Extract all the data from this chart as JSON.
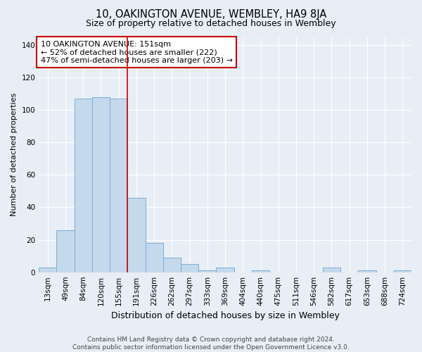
{
  "title": "10, OAKINGTON AVENUE, WEMBLEY, HA9 8JA",
  "subtitle": "Size of property relative to detached houses in Wembley",
  "xlabel": "Distribution of detached houses by size in Wembley",
  "ylabel": "Number of detached properties",
  "footer_line1": "Contains HM Land Registry data © Crown copyright and database right 2024.",
  "footer_line2": "Contains public sector information licensed under the Open Government Licence v3.0.",
  "bar_labels": [
    "13sqm",
    "49sqm",
    "84sqm",
    "120sqm",
    "155sqm",
    "191sqm",
    "226sqm",
    "262sqm",
    "297sqm",
    "333sqm",
    "369sqm",
    "404sqm",
    "440sqm",
    "475sqm",
    "511sqm",
    "546sqm",
    "582sqm",
    "617sqm",
    "653sqm",
    "688sqm",
    "724sqm"
  ],
  "bar_values": [
    3,
    26,
    107,
    108,
    107,
    46,
    18,
    9,
    5,
    1,
    3,
    0,
    1,
    0,
    0,
    0,
    3,
    0,
    1,
    0,
    1
  ],
  "bar_color": "#c5d9ed",
  "bar_edge_color": "#7aadd4",
  "ylim": [
    0,
    145
  ],
  "yticks": [
    0,
    20,
    40,
    60,
    80,
    100,
    120,
    140
  ],
  "property_line_index": 4.5,
  "property_line_color": "#cc0000",
  "annotation_text": "10 OAKINGTON AVENUE: 151sqm\n← 52% of detached houses are smaller (222)\n47% of semi-detached houses are larger (203) →",
  "annotation_box_color": "#ffffff",
  "annotation_box_edge": "#cc0000",
  "background_color": "#e8eef5",
  "grid_color": "#ffffff",
  "title_fontsize": 10.5,
  "subtitle_fontsize": 9,
  "ylabel_fontsize": 8,
  "xlabel_fontsize": 9,
  "tick_fontsize": 7.5,
  "annotation_fontsize": 8,
  "footer_fontsize": 6.5
}
